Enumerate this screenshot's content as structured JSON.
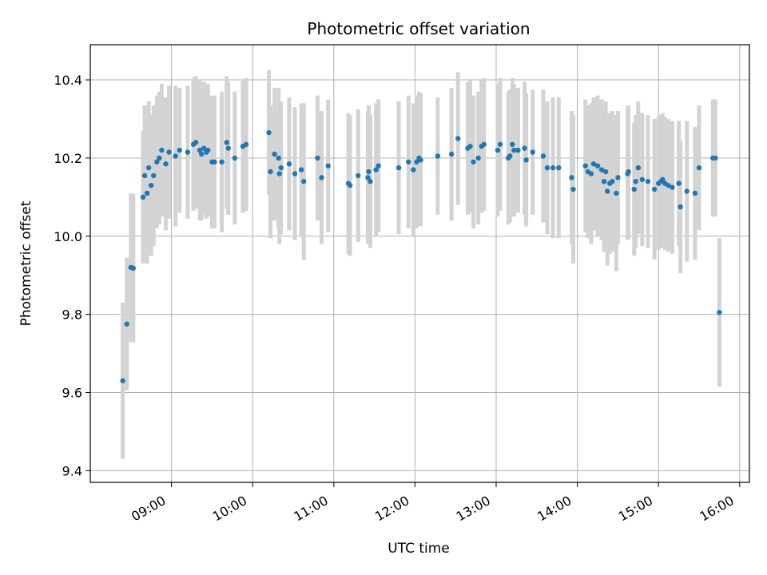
{
  "chart_data": {
    "type": "scatter",
    "title": "Photometric offset variation",
    "xlabel": "UTC time",
    "ylabel": "Photometric offset",
    "x_unit": "hours UTC",
    "xlim": [
      8.0,
      16.12
    ],
    "ylim": [
      9.37,
      10.49
    ],
    "grid": true,
    "x_ticks": [
      {
        "value": 9,
        "label": "09:00"
      },
      {
        "value": 10,
        "label": "10:00"
      },
      {
        "value": 11,
        "label": "11:00"
      },
      {
        "value": 12,
        "label": "12:00"
      },
      {
        "value": 13,
        "label": "13:00"
      },
      {
        "value": 14,
        "label": "14:00"
      },
      {
        "value": 15,
        "label": "15:00"
      },
      {
        "value": 16,
        "label": "16:00"
      }
    ],
    "y_ticks": [
      {
        "value": 9.4,
        "label": "9.4"
      },
      {
        "value": 9.6,
        "label": "9.6"
      },
      {
        "value": 9.8,
        "label": "9.8"
      },
      {
        "value": 10.0,
        "label": "10.0"
      },
      {
        "value": 10.2,
        "label": "10.2"
      },
      {
        "value": 10.4,
        "label": "10.4"
      }
    ],
    "colors": {
      "points": "#1f77b4",
      "errorbars": "#d3d3d3",
      "grid": "#b0b0b0"
    },
    "points": [
      {
        "x": 8.4,
        "y": 9.63,
        "err": 0.2
      },
      {
        "x": 8.45,
        "y": 9.775,
        "err": 0.17
      },
      {
        "x": 8.5,
        "y": 9.92,
        "err": 0.19
      },
      {
        "x": 8.53,
        "y": 9.918,
        "err": 0.19
      },
      {
        "x": 8.65,
        "y": 10.1,
        "err": 0.17
      },
      {
        "x": 8.67,
        "y": 10.155,
        "err": 0.18
      },
      {
        "x": 8.7,
        "y": 10.11,
        "err": 0.18
      },
      {
        "x": 8.72,
        "y": 10.175,
        "err": 0.17
      },
      {
        "x": 8.75,
        "y": 10.13,
        "err": 0.18
      },
      {
        "x": 8.78,
        "y": 10.155,
        "err": 0.18
      },
      {
        "x": 8.82,
        "y": 10.19,
        "err": 0.17
      },
      {
        "x": 8.85,
        "y": 10.2,
        "err": 0.17
      },
      {
        "x": 8.88,
        "y": 10.22,
        "err": 0.17
      },
      {
        "x": 8.93,
        "y": 10.185,
        "err": 0.17
      },
      {
        "x": 8.97,
        "y": 10.215,
        "err": 0.17
      },
      {
        "x": 9.05,
        "y": 10.205,
        "err": 0.18
      },
      {
        "x": 9.1,
        "y": 10.22,
        "err": 0.16
      },
      {
        "x": 9.2,
        "y": 10.215,
        "err": 0.17
      },
      {
        "x": 9.27,
        "y": 10.235,
        "err": 0.17
      },
      {
        "x": 9.3,
        "y": 10.24,
        "err": 0.17
      },
      {
        "x": 9.35,
        "y": 10.22,
        "err": 0.18
      },
      {
        "x": 9.37,
        "y": 10.21,
        "err": 0.17
      },
      {
        "x": 9.4,
        "y": 10.225,
        "err": 0.17
      },
      {
        "x": 9.43,
        "y": 10.215,
        "err": 0.17
      },
      {
        "x": 9.45,
        "y": 10.22,
        "err": 0.17
      },
      {
        "x": 9.5,
        "y": 10.19,
        "err": 0.17
      },
      {
        "x": 9.53,
        "y": 10.19,
        "err": 0.17
      },
      {
        "x": 9.62,
        "y": 10.19,
        "err": 0.18
      },
      {
        "x": 9.68,
        "y": 10.24,
        "err": 0.17
      },
      {
        "x": 9.7,
        "y": 10.225,
        "err": 0.17
      },
      {
        "x": 9.78,
        "y": 10.2,
        "err": 0.17
      },
      {
        "x": 9.88,
        "y": 10.23,
        "err": 0.17
      },
      {
        "x": 9.92,
        "y": 10.235,
        "err": 0.17
      },
      {
        "x": 10.2,
        "y": 10.265,
        "err": 0.16
      },
      {
        "x": 10.22,
        "y": 10.165,
        "err": 0.17
      },
      {
        "x": 10.27,
        "y": 10.21,
        "err": 0.17
      },
      {
        "x": 10.32,
        "y": 10.2,
        "err": 0.18
      },
      {
        "x": 10.33,
        "y": 10.16,
        "err": 0.18
      },
      {
        "x": 10.35,
        "y": 10.175,
        "err": 0.17
      },
      {
        "x": 10.45,
        "y": 10.185,
        "err": 0.17
      },
      {
        "x": 10.52,
        "y": 10.16,
        "err": 0.17
      },
      {
        "x": 10.6,
        "y": 10.17,
        "err": 0.17
      },
      {
        "x": 10.63,
        "y": 10.14,
        "err": 0.2
      },
      {
        "x": 10.8,
        "y": 10.2,
        "err": 0.16
      },
      {
        "x": 10.85,
        "y": 10.15,
        "err": 0.17
      },
      {
        "x": 10.93,
        "y": 10.18,
        "err": 0.17
      },
      {
        "x": 11.18,
        "y": 10.135,
        "err": 0.18
      },
      {
        "x": 11.2,
        "y": 10.13,
        "err": 0.18
      },
      {
        "x": 11.3,
        "y": 10.155,
        "err": 0.17
      },
      {
        "x": 11.42,
        "y": 10.15,
        "err": 0.17
      },
      {
        "x": 11.43,
        "y": 10.165,
        "err": 0.17
      },
      {
        "x": 11.45,
        "y": 10.14,
        "err": 0.17
      },
      {
        "x": 11.52,
        "y": 10.17,
        "err": 0.17
      },
      {
        "x": 11.55,
        "y": 10.18,
        "err": 0.17
      },
      {
        "x": 11.8,
        "y": 10.175,
        "err": 0.17
      },
      {
        "x": 11.92,
        "y": 10.19,
        "err": 0.17
      },
      {
        "x": 11.98,
        "y": 10.17,
        "err": 0.17
      },
      {
        "x": 12.02,
        "y": 10.19,
        "err": 0.17
      },
      {
        "x": 12.05,
        "y": 10.2,
        "err": 0.17
      },
      {
        "x": 12.07,
        "y": 10.195,
        "err": 0.17
      },
      {
        "x": 12.28,
        "y": 10.205,
        "err": 0.15
      },
      {
        "x": 12.45,
        "y": 10.21,
        "err": 0.17
      },
      {
        "x": 12.53,
        "y": 10.25,
        "err": 0.17
      },
      {
        "x": 12.65,
        "y": 10.225,
        "err": 0.17
      },
      {
        "x": 12.68,
        "y": 10.23,
        "err": 0.17
      },
      {
        "x": 12.72,
        "y": 10.19,
        "err": 0.17
      },
      {
        "x": 12.78,
        "y": 10.2,
        "err": 0.17
      },
      {
        "x": 12.82,
        "y": 10.23,
        "err": 0.17
      },
      {
        "x": 12.85,
        "y": 10.235,
        "err": 0.17
      },
      {
        "x": 13.02,
        "y": 10.22,
        "err": 0.17
      },
      {
        "x": 13.05,
        "y": 10.235,
        "err": 0.17
      },
      {
        "x": 13.15,
        "y": 10.2,
        "err": 0.17
      },
      {
        "x": 13.17,
        "y": 10.205,
        "err": 0.17
      },
      {
        "x": 13.2,
        "y": 10.235,
        "err": 0.17
      },
      {
        "x": 13.22,
        "y": 10.22,
        "err": 0.17
      },
      {
        "x": 13.27,
        "y": 10.22,
        "err": 0.16
      },
      {
        "x": 13.35,
        "y": 10.225,
        "err": 0.17
      },
      {
        "x": 13.37,
        "y": 10.195,
        "err": 0.17
      },
      {
        "x": 13.45,
        "y": 10.215,
        "err": 0.16
      },
      {
        "x": 13.58,
        "y": 10.205,
        "err": 0.17
      },
      {
        "x": 13.63,
        "y": 10.175,
        "err": 0.17
      },
      {
        "x": 13.7,
        "y": 10.175,
        "err": 0.18
      },
      {
        "x": 13.77,
        "y": 10.175,
        "err": 0.18
      },
      {
        "x": 13.93,
        "y": 10.15,
        "err": 0.17
      },
      {
        "x": 13.95,
        "y": 10.12,
        "err": 0.19
      },
      {
        "x": 14.1,
        "y": 10.18,
        "err": 0.17
      },
      {
        "x": 14.13,
        "y": 10.165,
        "err": 0.17
      },
      {
        "x": 14.17,
        "y": 10.16,
        "err": 0.18
      },
      {
        "x": 14.2,
        "y": 10.185,
        "err": 0.17
      },
      {
        "x": 14.25,
        "y": 10.18,
        "err": 0.18
      },
      {
        "x": 14.3,
        "y": 10.17,
        "err": 0.18
      },
      {
        "x": 14.33,
        "y": 10.14,
        "err": 0.18
      },
      {
        "x": 14.35,
        "y": 10.165,
        "err": 0.18
      },
      {
        "x": 14.37,
        "y": 10.115,
        "err": 0.19
      },
      {
        "x": 14.4,
        "y": 10.135,
        "err": 0.18
      },
      {
        "x": 14.43,
        "y": 10.14,
        "err": 0.18
      },
      {
        "x": 14.48,
        "y": 10.11,
        "err": 0.2
      },
      {
        "x": 14.5,
        "y": 10.15,
        "err": 0.17
      },
      {
        "x": 14.62,
        "y": 10.16,
        "err": 0.17
      },
      {
        "x": 14.63,
        "y": 10.165,
        "err": 0.17
      },
      {
        "x": 14.7,
        "y": 10.12,
        "err": 0.17
      },
      {
        "x": 14.72,
        "y": 10.14,
        "err": 0.17
      },
      {
        "x": 14.75,
        "y": 10.175,
        "err": 0.17
      },
      {
        "x": 14.8,
        "y": 10.145,
        "err": 0.17
      },
      {
        "x": 14.87,
        "y": 10.14,
        "err": 0.17
      },
      {
        "x": 14.95,
        "y": 10.12,
        "err": 0.18
      },
      {
        "x": 15.0,
        "y": 10.135,
        "err": 0.17
      },
      {
        "x": 15.03,
        "y": 10.14,
        "err": 0.17
      },
      {
        "x": 15.05,
        "y": 10.145,
        "err": 0.17
      },
      {
        "x": 15.08,
        "y": 10.135,
        "err": 0.17
      },
      {
        "x": 15.12,
        "y": 10.13,
        "err": 0.17
      },
      {
        "x": 15.17,
        "y": 10.125,
        "err": 0.17
      },
      {
        "x": 15.25,
        "y": 10.135,
        "err": 0.16
      },
      {
        "x": 15.27,
        "y": 10.075,
        "err": 0.17
      },
      {
        "x": 15.35,
        "y": 10.115,
        "err": 0.18
      },
      {
        "x": 15.45,
        "y": 10.11,
        "err": 0.17
      },
      {
        "x": 15.5,
        "y": 10.175,
        "err": 0.16
      },
      {
        "x": 15.67,
        "y": 10.2,
        "err": 0.15
      },
      {
        "x": 15.7,
        "y": 10.2,
        "err": 0.15
      },
      {
        "x": 15.75,
        "y": 9.805,
        "err": 0.19
      }
    ]
  }
}
